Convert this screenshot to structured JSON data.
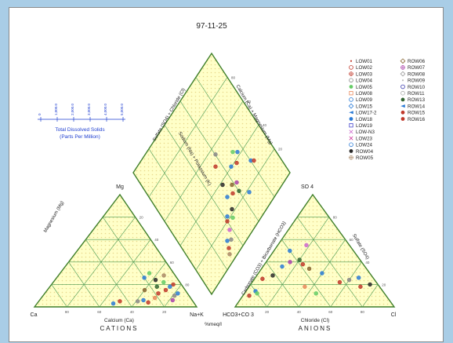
{
  "diagram": {
    "title": "97-11-25",
    "tds": {
      "title": "Total Dissolved Solids",
      "subtitle": "(Parts Per Million)",
      "ticks": [
        "0",
        "1,000.0",
        "2,000.0",
        "3,000.0",
        "4,000.0",
        "5,000.0"
      ]
    },
    "cation_triangle": {
      "apex_label": "Mg",
      "left_label": "Ca",
      "right_label": "Na+K",
      "side_label": "Magnesium (Mg)",
      "bottom_label": "Calcium (Ca)",
      "caption": "CATIONS",
      "tick_values": [
        "80",
        "60",
        "40",
        "20"
      ]
    },
    "anion_triangle": {
      "apex_label": "SO 4",
      "left_label": "HCO3+CO 3",
      "right_label": "Cl",
      "side_label": "Sulfate (SO4)",
      "left_side_label": "Carbonate (CO3) + Bicarbonate (HCO3)",
      "bottom_label": "Chloride (Cl)",
      "caption": "ANIONS",
      "tick_values": [
        "20",
        "40",
        "60",
        "80"
      ]
    },
    "diamond": {
      "upper_left_label": "Sulfate (SO4) + Chloride (Cl)",
      "upper_right_label": "Calcium (Ca) + Magnesium (Mg)",
      "inner_label": "Sodium (Na) + Potassium (K)",
      "tick_values": [
        "80",
        "60",
        "40",
        "20"
      ]
    },
    "unit_label": "%meq/l",
    "legend": {
      "left": [
        {
          "name": "LOW01",
          "color": "#c0392b",
          "symbol": "dot"
        },
        {
          "name": "LOW02",
          "color": "#c0392b",
          "symbol": "circle"
        },
        {
          "name": "LOW03",
          "color": "#c0392b",
          "symbol": "star"
        },
        {
          "name": "LOW04",
          "color": "#888888",
          "symbol": "circle"
        },
        {
          "name": "LOW05",
          "color": "#66cc66",
          "symbol": "filled"
        },
        {
          "name": "LOW08",
          "color": "#e8885a",
          "symbol": "square"
        },
        {
          "name": "LOW09",
          "color": "#2b7bd6",
          "symbol": "open"
        },
        {
          "name": "LOW15",
          "color": "#2b7bd6",
          "symbol": "diamond"
        },
        {
          "name": "LOW17-2",
          "color": "#2b7bd6",
          "symbol": "arrow"
        },
        {
          "name": "LOW18",
          "color": "#2b7bd6",
          "symbol": "filled"
        },
        {
          "name": "LOW19",
          "color": "#4444cc",
          "symbol": "square"
        },
        {
          "name": "LOW-N3",
          "color": "#cc66cc",
          "symbol": "cross"
        },
        {
          "name": "LOW23",
          "color": "#cc3399",
          "symbol": "cross"
        },
        {
          "name": "LOW24",
          "color": "#2b7bd6",
          "symbol": "circle"
        },
        {
          "name": "ROW04",
          "color": "#2a2a2a",
          "symbol": "filled"
        },
        {
          "name": "ROW05",
          "color": "#aa8866",
          "symbol": "plus"
        }
      ],
      "right": [
        {
          "name": "ROW06",
          "color": "#886633",
          "symbol": "diamond"
        },
        {
          "name": "ROW07",
          "color": "#aa44aa",
          "symbol": "hash"
        },
        {
          "name": "ROW08",
          "color": "#999999",
          "symbol": "diamond"
        },
        {
          "name": "ROW09",
          "color": "#bbbbbb",
          "symbol": "dot"
        },
        {
          "name": "ROW10",
          "color": "#3333aa",
          "symbol": "circle"
        },
        {
          "name": "ROW11",
          "color": "#aaaaaa",
          "symbol": "circle"
        },
        {
          "name": "ROW13",
          "color": "#336633",
          "symbol": "filled"
        },
        {
          "name": "ROW14",
          "color": "#2b7bd6",
          "symbol": "arrow"
        },
        {
          "name": "ROW15",
          "color": "#c0392b",
          "symbol": "filled"
        },
        {
          "name": "ROW16",
          "color": "#c0392b",
          "symbol": "half"
        }
      ]
    },
    "samples": {
      "cation": [
        [
          5,
          20,
          "#c0392b"
        ],
        [
          8,
          18,
          "#2b7bd6"
        ],
        [
          10,
          22,
          "#66cc66"
        ],
        [
          12,
          15,
          "#c0392b"
        ],
        [
          14,
          24,
          "#2a2a2a"
        ],
        [
          6,
          12,
          "#2b7bd6"
        ],
        [
          9,
          10,
          "#888888"
        ],
        [
          16,
          18,
          "#336633"
        ],
        [
          18,
          12,
          "#c0392b"
        ],
        [
          7,
          28,
          "#aa8866"
        ],
        [
          20,
          26,
          "#2b7bd6"
        ],
        [
          22,
          8,
          "#e8885a"
        ],
        [
          28,
          4,
          "#c0392b"
        ],
        [
          30,
          6,
          "#2b7bd6"
        ],
        [
          12,
          6,
          "#aa44aa"
        ],
        [
          34,
          5,
          "#888888"
        ],
        [
          45,
          5,
          "#c0392b"
        ],
        [
          50,
          3,
          "#2b7bd6"
        ],
        [
          15,
          30,
          "#66cc66"
        ],
        [
          25,
          15,
          "#886633"
        ]
      ],
      "anion": [
        [
          4,
          10,
          "#c0392b"
        ],
        [
          6,
          14,
          "#2b7bd6"
        ],
        [
          8,
          12,
          "#66cc66"
        ],
        [
          5,
          25,
          "#c0392b"
        ],
        [
          10,
          28,
          "#2a2a2a"
        ],
        [
          12,
          36,
          "#2b7bd6"
        ],
        [
          15,
          40,
          "#aa44aa"
        ],
        [
          20,
          42,
          "#336633"
        ],
        [
          24,
          38,
          "#c0392b"
        ],
        [
          30,
          34,
          "#886633"
        ],
        [
          40,
          30,
          "#2b7bd6"
        ],
        [
          55,
          22,
          "#c0392b"
        ],
        [
          60,
          24,
          "#888888"
        ],
        [
          65,
          26,
          "#2b7bd6"
        ],
        [
          70,
          18,
          "#c0392b"
        ],
        [
          75,
          20,
          "#2a2a2a"
        ],
        [
          10,
          50,
          "#2b7bd6"
        ],
        [
          18,
          55,
          "#cc66cc"
        ],
        [
          35,
          18,
          "#e8885a"
        ],
        [
          45,
          12,
          "#66cc66"
        ]
      ],
      "diamond": [
        [
          30,
          92,
          "#c0392b"
        ],
        [
          32,
          88,
          "#2b7bd6"
        ],
        [
          35,
          90,
          "#888888"
        ],
        [
          28,
          95,
          "#aa8866"
        ],
        [
          40,
          80,
          "#c0392b"
        ],
        [
          42,
          78,
          "#2b7bd6"
        ],
        [
          45,
          82,
          "#66cc66"
        ],
        [
          48,
          78,
          "#2a2a2a"
        ],
        [
          50,
          70,
          "#2b7bd6"
        ],
        [
          55,
          72,
          "#c0392b"
        ],
        [
          58,
          68,
          "#886633"
        ],
        [
          60,
          75,
          "#336633"
        ],
        [
          62,
          70,
          "#aa44aa"
        ],
        [
          65,
          60,
          "#2b7bd6"
        ],
        [
          70,
          62,
          "#c0392b"
        ],
        [
          72,
          55,
          "#66cc66"
        ],
        [
          75,
          58,
          "#2b7bd6"
        ],
        [
          55,
          50,
          "#c0392b"
        ],
        [
          60,
          45,
          "#888888"
        ],
        [
          52,
          62,
          "#2a2a2a"
        ],
        [
          80,
          70,
          "#2b7bd6"
        ],
        [
          82,
          72,
          "#c0392b"
        ],
        [
          38,
          85,
          "#cc66cc"
        ],
        [
          66,
          82,
          "#2b7bd6"
        ]
      ]
    }
  }
}
